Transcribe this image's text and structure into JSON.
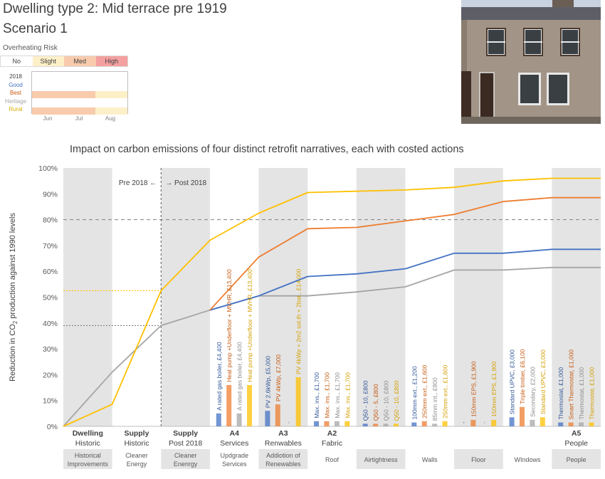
{
  "header": {
    "title_line1": "Dwelling type 2: Mid terrace pre 1919",
    "title_line2": "Scenario 1"
  },
  "overheating": {
    "label": "Overheating Risk",
    "levels": [
      {
        "label": "No",
        "color": "#ffffff"
      },
      {
        "label": "Slight",
        "color": "#fdf0c8"
      },
      {
        "label": "Med",
        "color": "#f8cbad"
      },
      {
        "label": "High",
        "color": "#f4a0a0"
      }
    ],
    "rows": [
      {
        "label": "2018",
        "color": "#404040"
      },
      {
        "label": "Good",
        "color": "#4472c4"
      },
      {
        "label": "Best",
        "color": "#c55a11"
      },
      {
        "label": "Heritage",
        "color": "#a6a6a6"
      },
      {
        "label": "Rural",
        "color": "#d9b000"
      }
    ],
    "months": [
      "Jun",
      "Jul",
      "Aug"
    ],
    "risk_by_row": {
      "2018": [
        "No",
        "No",
        "No"
      ],
      "Good": [
        "No",
        "No",
        "No"
      ],
      "Best": [
        "Med",
        "Med",
        "Slight"
      ],
      "Heritage": [
        "No",
        "No",
        "No"
      ],
      "Rural": [
        "Med",
        "Med",
        "Slight"
      ]
    }
  },
  "photo": {
    "alt": "mid-terrace-house-photo"
  },
  "chart_data": {
    "type": "line",
    "title": "Impact on carbon emissions of four distinct retrofit narratives, each with costed actions",
    "ylabel_main": "Reduction in CO",
    "ylabel_sub": "2",
    "ylabel_rest": " production against 1990 levels",
    "ylim": [
      0,
      100
    ],
    "yticks": [
      "0%",
      "10%",
      "20%",
      "30%",
      "40%",
      "50%",
      "60%",
      "70%",
      "80%",
      "90%",
      "100%"
    ],
    "reference_line": 80,
    "pre_post": {
      "pre": "Pre 2018 ←",
      "post": "→ Post 2018"
    },
    "stages": [
      {
        "top": "Dwelling",
        "sub": "Historic",
        "bottom": [
          "Historical",
          "Improvements"
        ],
        "shaded": true
      },
      {
        "top": "Supply",
        "sub": "Historic",
        "bottom": [
          "Cleaner",
          "Energy"
        ],
        "shaded": false
      },
      {
        "top": "Supply",
        "sub": "Post 2018",
        "bottom": [
          "Cleaner",
          "Enenrgy"
        ],
        "shaded": true
      },
      {
        "top": "A4",
        "sub": "Services",
        "bottom": [
          "Updgrade",
          "Services"
        ],
        "shaded": false
      },
      {
        "top": "A3",
        "sub": "Renwables",
        "bottom": [
          "Addiotion of",
          "Renewables"
        ],
        "shaded": true
      },
      {
        "top": "A2",
        "sub": "Fabric",
        "bottom": [
          "Roof"
        ],
        "shaded": false
      },
      {
        "top": "",
        "sub": "",
        "bottom": [
          "Airtightness"
        ],
        "shaded": true
      },
      {
        "top": "",
        "sub": "",
        "bottom": [
          "Walls"
        ],
        "shaded": false
      },
      {
        "top": "",
        "sub": "",
        "bottom": [
          "Floor"
        ],
        "shaded": true
      },
      {
        "top": "",
        "sub": "",
        "bottom": [
          "WIndows"
        ],
        "shaded": false
      },
      {
        "top": "A5",
        "sub": "People",
        "bottom": [
          "People"
        ],
        "shaded": true
      }
    ],
    "series": [
      {
        "color": "#a5a5a5",
        "values": [
          0,
          21,
          39,
          45,
          50.5,
          50.5,
          52,
          54,
          60.5,
          60.5,
          61.5
        ]
      },
      {
        "color": "#4472c4",
        "values": [
          null,
          null,
          null,
          45,
          50.5,
          58,
          59,
          61,
          67,
          67,
          68.5
        ]
      },
      {
        "color": "#ed7d31",
        "values": [
          null,
          null,
          null,
          45,
          65.5,
          76.5,
          77,
          79.5,
          82,
          87,
          88.5
        ]
      },
      {
        "color": "#ffc000",
        "values": [
          0,
          8.5,
          52.5,
          72,
          82.5,
          90.5,
          91,
          91.5,
          92.5,
          95,
          96
        ]
      }
    ],
    "dotted_levels": [
      {
        "color": "#ffc000",
        "value": 52.5
      },
      {
        "color": "#7f7f7f",
        "value": 39
      }
    ],
    "actions": [
      {
        "stage": 3,
        "slot": 0,
        "color": "#4472c4",
        "value": 5,
        "label": "A rated gas boiler, £4,400"
      },
      {
        "stage": 3,
        "slot": 1,
        "color": "#ed7d31",
        "value": 16,
        "label": "Heat pump +Underfloor + MVHR, £13,400"
      },
      {
        "stage": 3,
        "slot": 2,
        "color": "#a5a5a5",
        "value": 5,
        "label": "A rated gas boiler, £4,400"
      },
      {
        "stage": 3,
        "slot": 3,
        "color": "#ffc000",
        "value": 16,
        "label": "Heat pump +Underfloor + MVHR, £13,400"
      },
      {
        "stage": 4,
        "slot": 0,
        "color": "#4472c4",
        "value": 6,
        "label": "PV 2.6kWp, £5,000"
      },
      {
        "stage": 4,
        "slot": 1,
        "color": "#ed7d31",
        "value": 8.5,
        "label": "PV 4kWp, £7,000"
      },
      {
        "stage": 4,
        "slot": 2,
        "color": "#a5a5a5",
        "value": 0,
        "label": "-"
      },
      {
        "stage": 4,
        "slot": 3,
        "color": "#ffc000",
        "value": 19,
        "label": "PV 4kWp + 2m2 sol.th + 2bat., £14,000"
      },
      {
        "stage": 5,
        "slot": 0,
        "color": "#4472c4",
        "value": 2,
        "label": "Max. ins., £1,700"
      },
      {
        "stage": 5,
        "slot": 1,
        "color": "#ed7d31",
        "value": 2,
        "label": "Max. ins., £1,700"
      },
      {
        "stage": 5,
        "slot": 2,
        "color": "#a5a5a5",
        "value": 2,
        "label": "Max. ins., £1,700"
      },
      {
        "stage": 5,
        "slot": 3,
        "color": "#ffc000",
        "value": 2,
        "label": "Max. ins., £1,700"
      },
      {
        "stage": 6,
        "slot": 0,
        "color": "#4472c4",
        "value": 1,
        "label": "Q50 - 10, £800"
      },
      {
        "stage": 6,
        "slot": 1,
        "color": "#ed7d31",
        "value": 1,
        "label": "Q50 - 5, £800"
      },
      {
        "stage": 6,
        "slot": 2,
        "color": "#a5a5a5",
        "value": 1,
        "label": "Q50 - 10, £800"
      },
      {
        "stage": 6,
        "slot": 3,
        "color": "#ffc000",
        "value": 1,
        "label": "Q50 - 10, £800"
      },
      {
        "stage": 7,
        "slot": 0,
        "color": "#4472c4",
        "value": 1.5,
        "label": "100mm ext., £1,200"
      },
      {
        "stage": 7,
        "slot": 1,
        "color": "#ed7d31",
        "value": 2,
        "label": "250mm ext., £1,600"
      },
      {
        "stage": 7,
        "slot": 2,
        "color": "#a5a5a5",
        "value": 1,
        "label": "85mm int., £900"
      },
      {
        "stage": 7,
        "slot": 3,
        "color": "#ffc000",
        "value": 2,
        "label": "250mm ext., £1,600"
      },
      {
        "stage": 8,
        "slot": 0,
        "color": "#4472c4",
        "value": 0,
        "label": "-"
      },
      {
        "stage": 8,
        "slot": 1,
        "color": "#ed7d31",
        "value": 2.5,
        "label": "150mm EPS, £1,900"
      },
      {
        "stage": 8,
        "slot": 2,
        "color": "#a5a5a5",
        "value": 0,
        "label": "-"
      },
      {
        "stage": 8,
        "slot": 3,
        "color": "#ffc000",
        "value": 2.5,
        "label": "150mm EPS, £1,900"
      },
      {
        "stage": 9,
        "slot": 0,
        "color": "#4472c4",
        "value": 3.5,
        "label": "Standard UPVC, £3,000"
      },
      {
        "stage": 9,
        "slot": 1,
        "color": "#ed7d31",
        "value": 7.5,
        "label": "Triple timber, £6,100"
      },
      {
        "stage": 9,
        "slot": 2,
        "color": "#a5a5a5",
        "value": 2.5,
        "label": "Secondary, £2,000"
      },
      {
        "stage": 9,
        "slot": 3,
        "color": "#ffc000",
        "value": 3.5,
        "label": "Standard UPVC, £3,000"
      },
      {
        "stage": 10,
        "slot": 0,
        "color": "#4472c4",
        "value": 1.5,
        "label": "Thermostat, £1,000"
      },
      {
        "stage": 10,
        "slot": 1,
        "color": "#ed7d31",
        "value": 1.5,
        "label": "Smart Thermostat, £1,000"
      },
      {
        "stage": 10,
        "slot": 2,
        "color": "#a5a5a5",
        "value": 1.5,
        "label": "Thermostat, £1,000"
      },
      {
        "stage": 10,
        "slot": 3,
        "color": "#ffc000",
        "value": 1.5,
        "label": "Thermostat, £1,000"
      }
    ]
  }
}
